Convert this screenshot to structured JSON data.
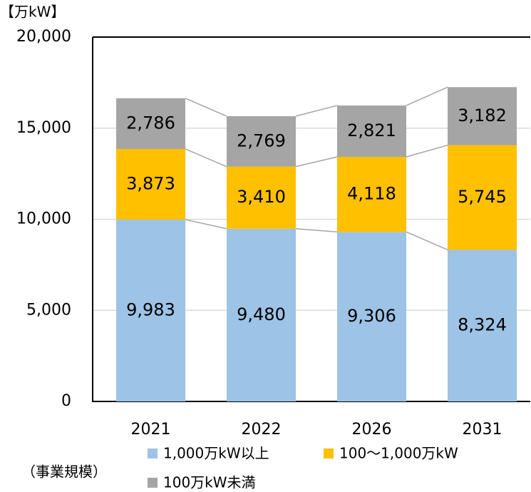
{
  "chart_data": {
    "type": "stacked_bar",
    "unit_label": "【万kW】",
    "legend_title": "（事業規模）",
    "categories": [
      "2021",
      "2022",
      "2026",
      "2031"
    ],
    "series": [
      {
        "name": "1,000万kW以上",
        "color": "#9dc3e6",
        "values": [
          9983,
          9480,
          9306,
          8324
        ],
        "value_labels": [
          "9,983",
          "9,480",
          "9,306",
          "8,324"
        ]
      },
      {
        "name": "100～1,000万kW",
        "color": "#ffc000",
        "values": [
          3873,
          3410,
          4118,
          5745
        ],
        "value_labels": [
          "3,873",
          "3,410",
          "4,118",
          "5,745"
        ]
      },
      {
        "name": "100万kW未満",
        "color": "#a5a5a5",
        "values": [
          2786,
          2769,
          2821,
          3182
        ],
        "value_labels": [
          "2,786",
          "2,769",
          "2,821",
          "3,182"
        ]
      }
    ],
    "ylim": [
      0,
      20000
    ],
    "yticks": [
      0,
      {
        "value": 5000,
        "label": "5,000"
      },
      {
        "value": 10000,
        "label": "10,000"
      },
      {
        "value": 15000,
        "label": "15,000"
      },
      {
        "value": 20000,
        "label": "20,000"
      }
    ],
    "grid": true
  }
}
